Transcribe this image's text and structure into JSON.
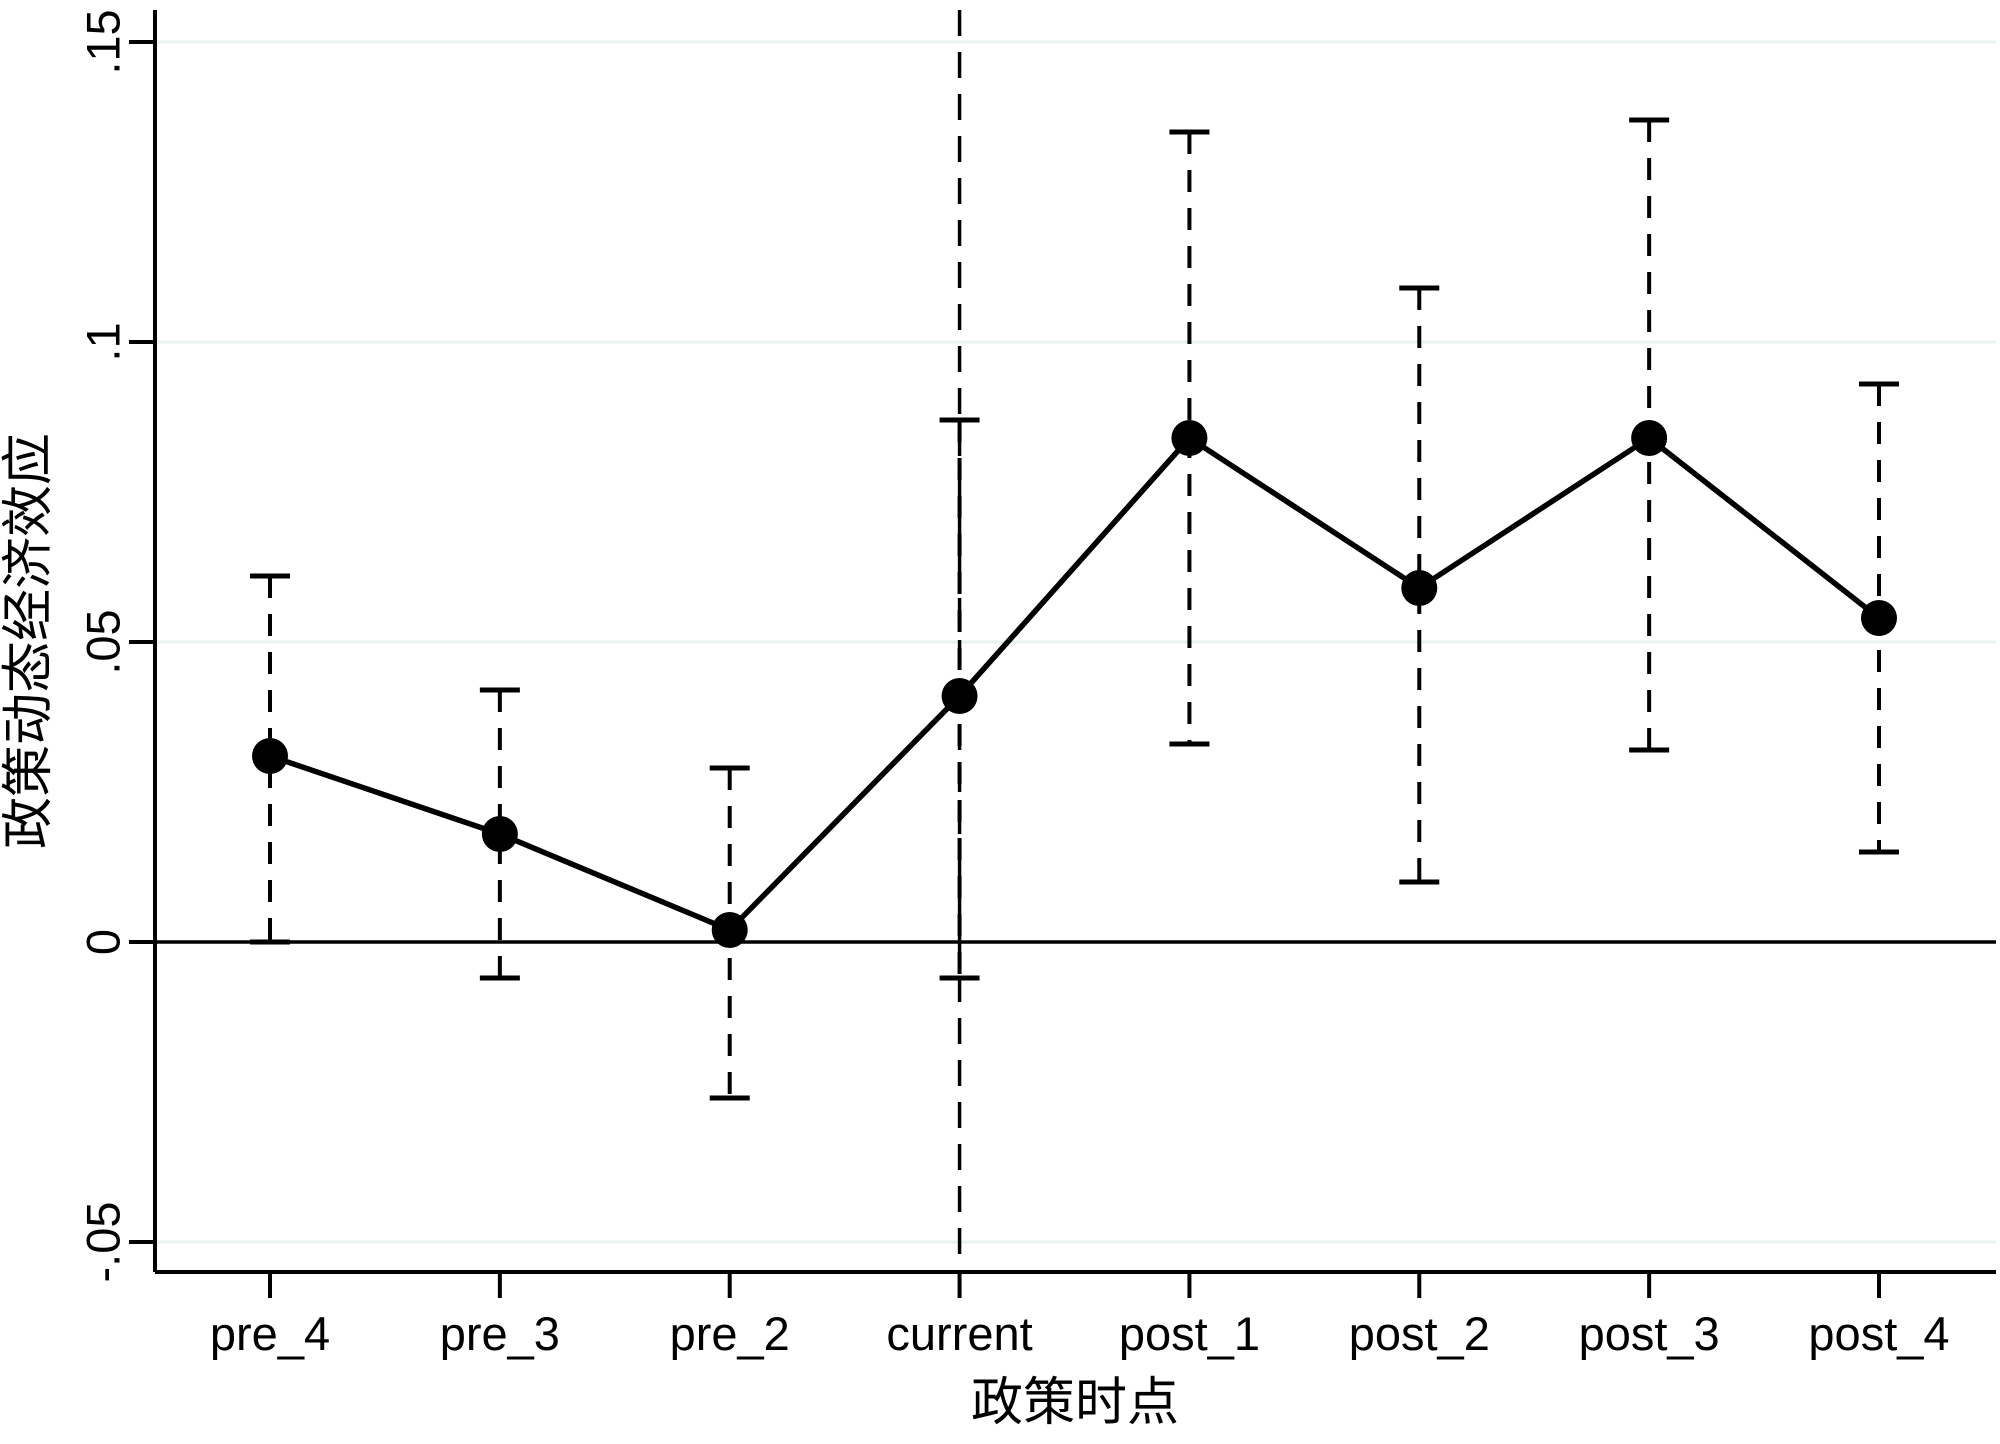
{
  "chart_data": {
    "type": "line",
    "title": "",
    "xlabel": "政策时点",
    "ylabel": "政策动态经济效应",
    "categories": [
      "pre_4",
      "pre_3",
      "pre_2",
      "current",
      "post_1",
      "post_2",
      "post_3",
      "post_4"
    ],
    "series": [
      {
        "name": "point-estimate",
        "values": [
          0.031,
          0.018,
          0.002,
          0.041,
          0.084,
          0.059,
          0.084,
          0.054
        ]
      }
    ],
    "confidence_intervals": {
      "low": [
        0.0,
        -0.006,
        -0.026,
        -0.006,
        0.033,
        0.01,
        0.032,
        0.015
      ],
      "high": [
        0.061,
        0.042,
        0.029,
        0.087,
        0.135,
        0.109,
        0.137,
        0.093
      ]
    },
    "yticks": [
      -0.05,
      0,
      0.05,
      0.1,
      0.15
    ],
    "ytick_labels": [
      "-.05",
      "0",
      ".05",
      ".1",
      ".15"
    ],
    "ylim": [
      -0.055,
      0.155
    ],
    "xlim_categories": [
      "pre_4",
      "post_4"
    ],
    "grid": "horizontal",
    "legend": "none",
    "zero_line_at": 0,
    "reference_vline_at_category": "current",
    "marker": "filled-circle",
    "ci_style": "dashed-whisker-with-caps",
    "colors": {
      "line": "#000000",
      "marker": "#000000",
      "ci": "#000000",
      "axis": "#000000",
      "grid": "#e8f2ee",
      "background": "#ffffff"
    }
  }
}
